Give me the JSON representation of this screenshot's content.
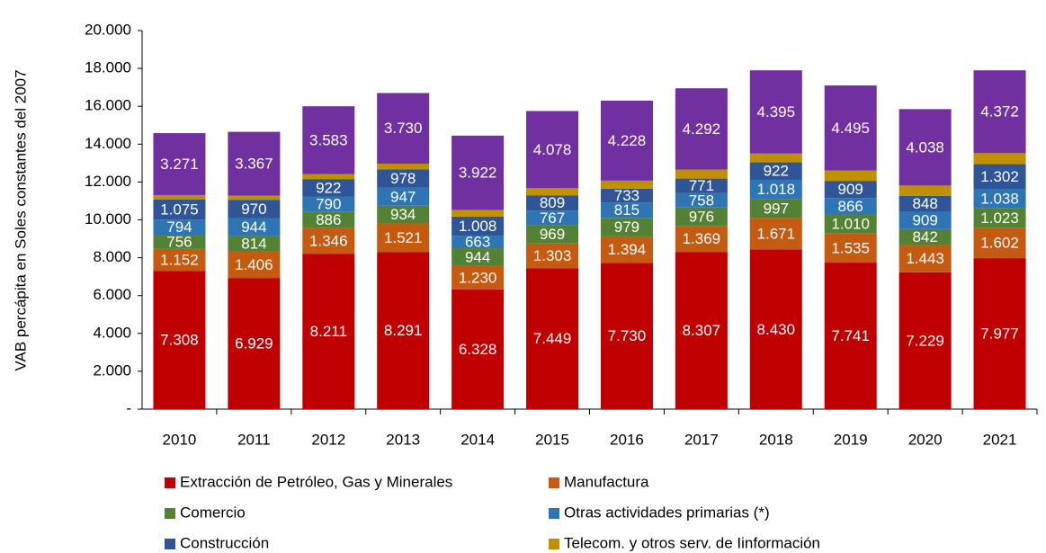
{
  "chart_data": {
    "type": "stacked_bar",
    "y_label": "VAB percápita en Soles constantes del 2007",
    "categories": [
      "2010",
      "2011",
      "2012",
      "2013",
      "2014",
      "2015",
      "2016",
      "2017",
      "2018",
      "2019",
      "2020",
      "2021"
    ],
    "ylim": [
      0,
      20000
    ],
    "yticks": [
      {
        "value": 0,
        "label": "-"
      },
      {
        "value": 2000,
        "label": "2.000"
      },
      {
        "value": 4000,
        "label": "4.000"
      },
      {
        "value": 6000,
        "label": "6.000"
      },
      {
        "value": 8000,
        "label": "8.000"
      },
      {
        "value": 10000,
        "label": "10.000"
      },
      {
        "value": 12000,
        "label": "12.000"
      },
      {
        "value": 14000,
        "label": "14.000"
      },
      {
        "value": 16000,
        "label": "16.000"
      },
      {
        "value": 18000,
        "label": "18.000"
      },
      {
        "value": 20000,
        "label": "20.000"
      }
    ],
    "grid": false,
    "series": [
      {
        "name": "Extracción de Petróleo, Gas y Minerales",
        "color": "#c00000",
        "values": [
          7308,
          6929,
          8211,
          8291,
          6328,
          7449,
          7730,
          8307,
          8430,
          7741,
          7229,
          7977
        ],
        "value_labels": [
          "7.308",
          "6.929",
          "8.211",
          "8.291",
          "6.328",
          "7.449",
          "7.730",
          "8.307",
          "8.430",
          "7.741",
          "7.229",
          "7.977"
        ]
      },
      {
        "name": "Manufactura",
        "color": "#c55a11",
        "values": [
          1152,
          1406,
          1346,
          1521,
          1230,
          1303,
          1394,
          1369,
          1671,
          1535,
          1443,
          1602
        ],
        "value_labels": [
          "1.152",
          "1.406",
          "1.346",
          "1.521",
          "1.230",
          "1.303",
          "1.394",
          "1.369",
          "1.671",
          "1.535",
          "1.443",
          "1.602"
        ]
      },
      {
        "name": "Comercio",
        "color": "#548235",
        "values": [
          756,
          814,
          886,
          934,
          944,
          969,
          979,
          976,
          997,
          1010,
          842,
          1023
        ],
        "value_labels": [
          "756",
          "814",
          "886",
          "934",
          "944",
          "969",
          "979",
          "976",
          "997",
          "1.010",
          "842",
          "1.023"
        ]
      },
      {
        "name": "Otras actividades primarias (*)",
        "color": "#2e75b6",
        "values": [
          794,
          944,
          790,
          947,
          663,
          767,
          815,
          758,
          1018,
          866,
          909,
          1038
        ],
        "value_labels": [
          "794",
          "944",
          "790",
          "947",
          "663",
          "767",
          "815",
          "758",
          "1.018",
          "866",
          "909",
          "1.038"
        ]
      },
      {
        "name": "Construcción",
        "color": "#2f5597",
        "values": [
          1075,
          970,
          922,
          978,
          1008,
          809,
          733,
          771,
          922,
          909,
          848,
          1302
        ],
        "value_labels": [
          "1.075",
          "970",
          "922",
          "978",
          "1.008",
          "809",
          "733",
          "771",
          "922",
          "909",
          "848",
          "1.302"
        ]
      },
      {
        "name": "Telecom. y otros serv. de Iinformación",
        "color": "#bf9000",
        "values": [
          224,
          220,
          262,
          299,
          355,
          375,
          421,
          477,
          467,
          544,
          541,
          586
        ]
      },
      {
        "color": "#7030a0",
        "values": [
          3271,
          3367,
          3583,
          3730,
          3922,
          4078,
          4228,
          4292,
          4395,
          4495,
          4038,
          4372
        ],
        "value_labels": [
          "3.271",
          "3.367",
          "3.583",
          "3.730",
          "3.922",
          "4.078",
          "4.228",
          "4.292",
          "4.395",
          "4.495",
          "4.038",
          "4.372"
        ]
      }
    ]
  }
}
